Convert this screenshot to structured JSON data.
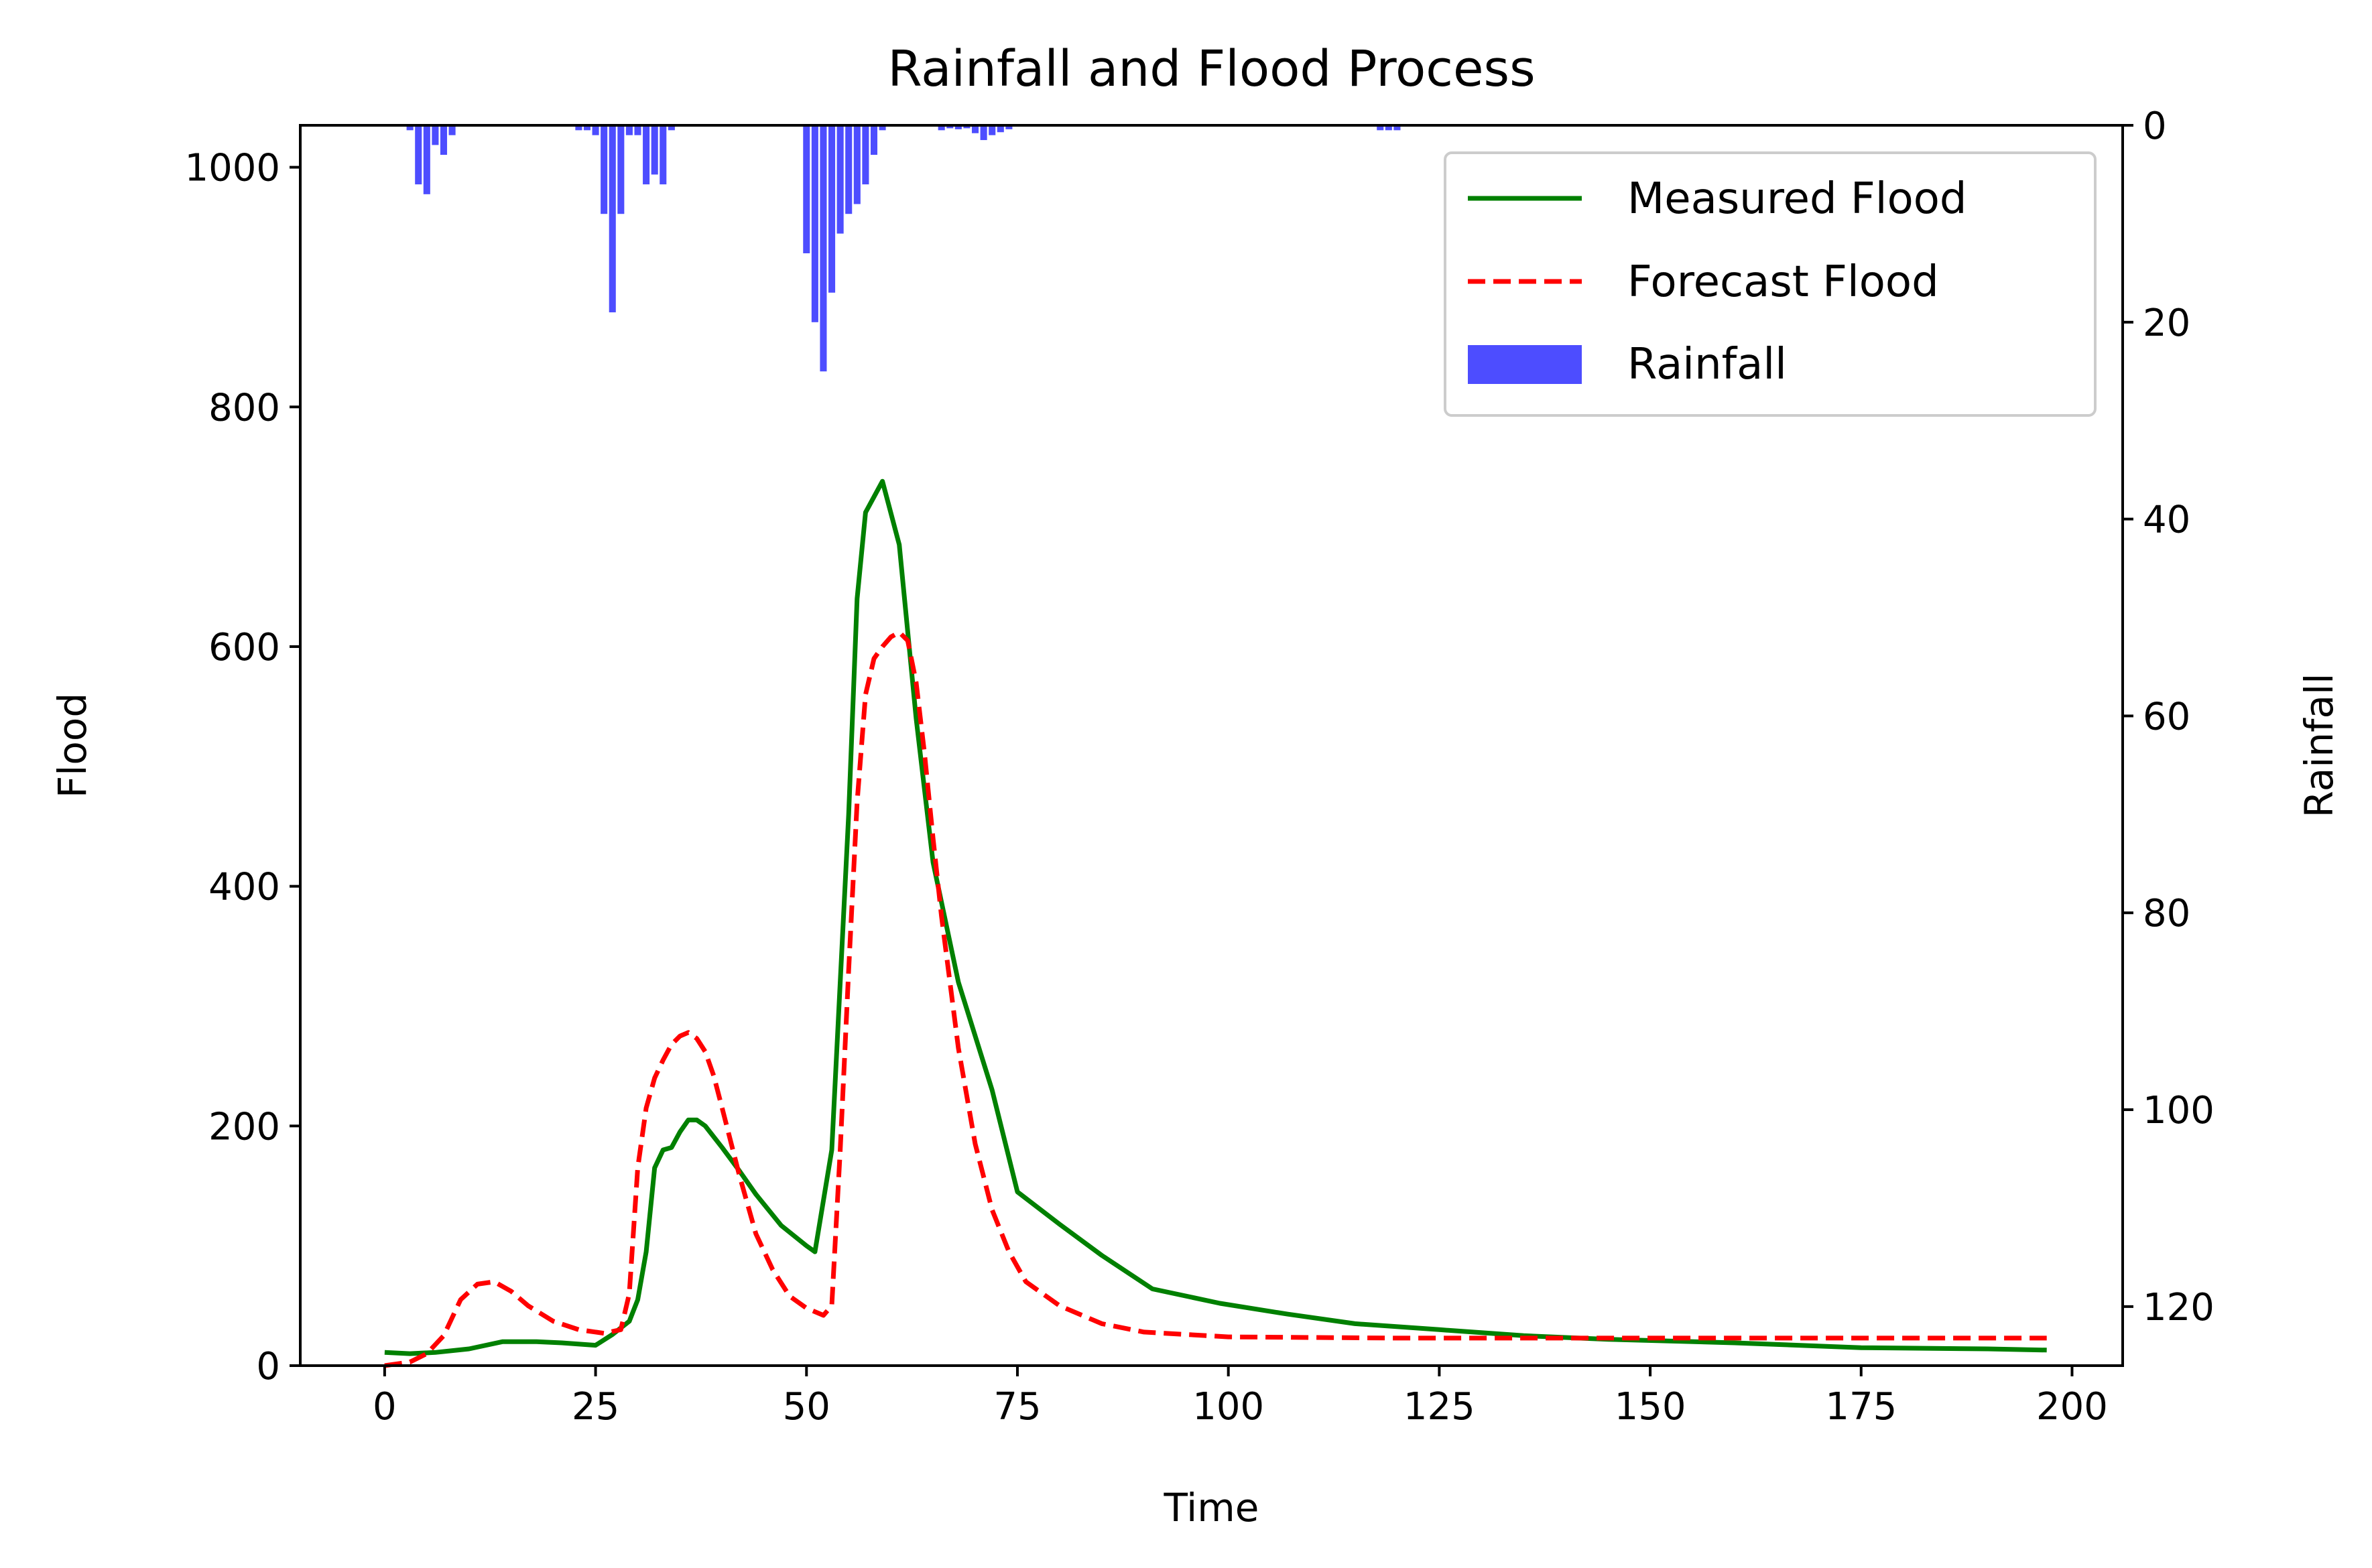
{
  "chart_data": {
    "type": "line",
    "title": "Rainfall and Flood Process",
    "xlabel": "Time",
    "ylabel": "Flood",
    "y2label": "Rainfall",
    "xlim": [
      -10,
      206
    ],
    "ylim": [
      0,
      1035
    ],
    "y2lim": [
      0,
      126
    ],
    "y2_inverted": true,
    "xticks": [
      0,
      25,
      50,
      75,
      100,
      125,
      150,
      175,
      200
    ],
    "yticks": [
      0,
      200,
      400,
      600,
      800,
      1000
    ],
    "y2ticks": [
      0,
      20,
      40,
      60,
      80,
      100,
      120
    ],
    "legend_position": "top-right",
    "grid": false,
    "series": [
      {
        "name": "Measured Flood",
        "kind": "line",
        "color": "#008000",
        "dash": "solid",
        "x": [
          0,
          3,
          6,
          10,
          14,
          18,
          21,
          25,
          27,
          29,
          30,
          31,
          32,
          33,
          34,
          35,
          36,
          37,
          38,
          40,
          42,
          44,
          47,
          50,
          51,
          53,
          55,
          56,
          57,
          59,
          61,
          63,
          65,
          68,
          72,
          75,
          80,
          85,
          91,
          99,
          107,
          115,
          125,
          135,
          145,
          160,
          175,
          190,
          197
        ],
        "y": [
          11,
          10,
          11,
          14,
          20,
          20,
          19,
          17,
          26,
          37,
          55,
          95,
          165,
          180,
          182,
          195,
          205,
          205,
          200,
          182,
          163,
          143,
          117,
          100,
          95,
          180,
          460,
          640,
          712,
          738,
          685,
          540,
          420,
          320,
          230,
          145,
          118,
          92,
          64,
          52,
          43,
          35,
          30,
          25,
          22,
          19,
          15,
          14,
          13
        ]
      },
      {
        "name": "Forecast Flood",
        "kind": "line",
        "color": "#ff0000",
        "dash": "dashed",
        "x": [
          0,
          3,
          5,
          7,
          9,
          11,
          13,
          15,
          17,
          20,
          23,
          26,
          28,
          29,
          30,
          31,
          32,
          33,
          34,
          35,
          36,
          37,
          38,
          39,
          40,
          42,
          44,
          46,
          48,
          50,
          52,
          53,
          54,
          55,
          56,
          57,
          58,
          59,
          60,
          61,
          62,
          63,
          64,
          65,
          66,
          68,
          70,
          72,
          74,
          76,
          80,
          85,
          90,
          100,
          120,
          140,
          160,
          180,
          197
        ],
        "y": [
          0,
          3,
          10,
          25,
          55,
          68,
          70,
          62,
          50,
          37,
          30,
          27,
          30,
          60,
          165,
          215,
          240,
          255,
          268,
          275,
          278,
          273,
          262,
          242,
          215,
          160,
          110,
          80,
          58,
          48,
          42,
          50,
          180,
          330,
          470,
          560,
          590,
          600,
          608,
          612,
          605,
          570,
          510,
          440,
          375,
          265,
          185,
          130,
          95,
          70,
          50,
          35,
          28,
          24,
          23,
          23,
          23,
          23,
          23
        ]
      },
      {
        "name": "Rainfall",
        "kind": "bar",
        "axis": "right",
        "color": "#4d4dff",
        "x": [
          3,
          4,
          5,
          6,
          7,
          8,
          23,
          24,
          25,
          26,
          27,
          28,
          29,
          30,
          31,
          32,
          33,
          34,
          50,
          51,
          52,
          53,
          54,
          55,
          56,
          57,
          58,
          59,
          66,
          67,
          68,
          69,
          70,
          71,
          72,
          73,
          74,
          118,
          119,
          120
        ],
        "values": [
          0.5,
          6,
          7,
          2,
          3,
          1,
          0.5,
          0.5,
          1,
          9,
          19,
          9,
          1,
          1,
          6,
          5,
          6,
          0.5,
          13,
          20,
          25,
          17,
          11,
          9,
          8,
          6,
          3,
          0.5,
          0.5,
          0.3,
          0.4,
          0.3,
          0.8,
          1.5,
          1,
          0.7,
          0.4,
          0.5,
          0.5,
          0.5
        ]
      }
    ]
  }
}
